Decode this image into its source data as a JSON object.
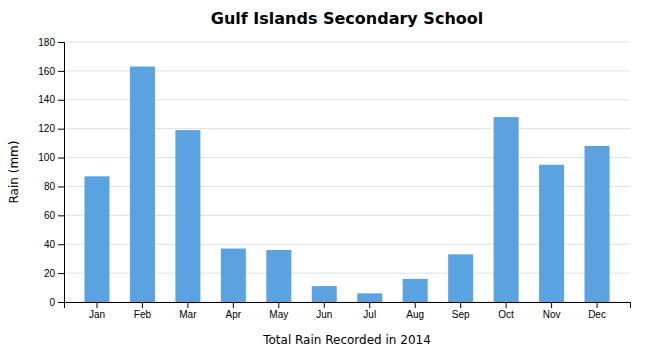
{
  "chart_data": {
    "type": "bar",
    "title": "Gulf Islands Secondary School",
    "xlabel": "Total Rain Recorded in 2014",
    "ylabel": "Rain (mm)",
    "categories": [
      "Jan",
      "Feb",
      "Mar",
      "Apr",
      "May",
      "Jun",
      "Jul",
      "Aug",
      "Sep",
      "Oct",
      "Nov",
      "Dec"
    ],
    "values": [
      87,
      163,
      119,
      37,
      36,
      11,
      6,
      16,
      33,
      128,
      95,
      108
    ],
    "color": "#5BA3E0",
    "ylim": [
      0,
      180
    ],
    "yticks": [
      0,
      20,
      40,
      60,
      80,
      100,
      120,
      140,
      160,
      180
    ],
    "grid": true
  }
}
